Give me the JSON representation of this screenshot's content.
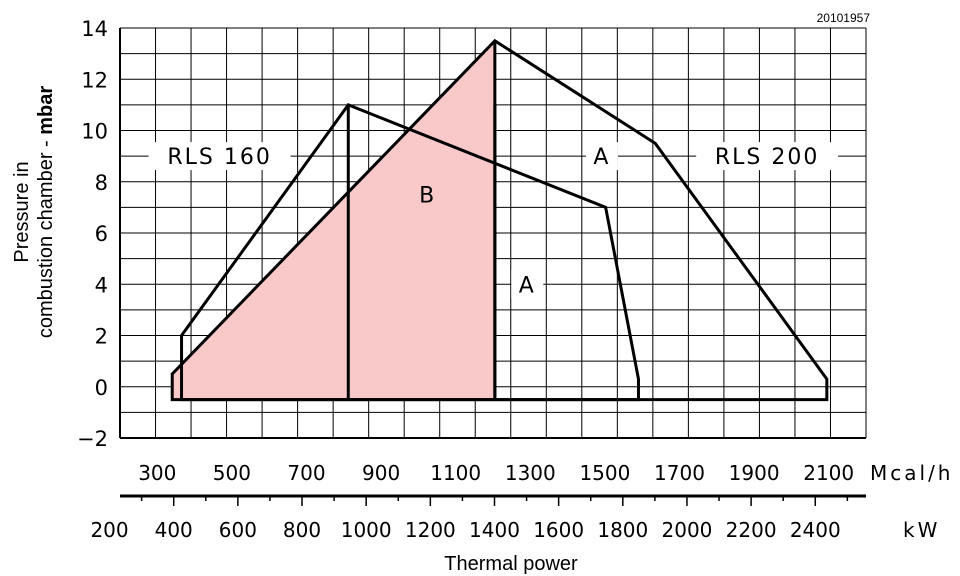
{
  "chart_data": {
    "type": "area",
    "drawing_code": "20101957",
    "ylabel_line1": "Pressure in",
    "ylabel_line2_normal": "combustion chamber - ",
    "ylabel_line2_bold": "mbar",
    "xlabel": "Thermal power",
    "unit_mcal": "Mcal/h",
    "unit_kw": "kW",
    "ylim": [
      -2,
      14
    ],
    "y_ticks": [
      "14",
      "12",
      "10",
      "8",
      "6",
      "4",
      "2",
      "0",
      "−2"
    ],
    "x_range_mcal": [
      200,
      2200
    ],
    "mcal_ticks": [
      "300",
      "500",
      "700",
      "900",
      "1100",
      "1300",
      "1500",
      "1700",
      "1900",
      "2100"
    ],
    "kw_ticks": [
      "200",
      "400",
      "600",
      "800",
      "1000",
      "1200",
      "1400",
      "1600",
      "1800",
      "2000",
      "2200",
      "2400"
    ],
    "grid": true,
    "series": [
      {
        "name": "RLS 160",
        "points": [
          [
            365,
            -0.5
          ],
          [
            365,
            2
          ],
          [
            812,
            11
          ],
          [
            1502,
            7
          ],
          [
            1590,
            0.3
          ],
          [
            1590,
            -0.5
          ]
        ]
      },
      {
        "name": "RLS 200",
        "points": [
          [
            340,
            -0.5
          ],
          [
            340,
            0.5
          ],
          [
            1205,
            13.5
          ],
          [
            1635,
            9.5
          ],
          [
            2095,
            0.3
          ],
          [
            2095,
            -0.5
          ]
        ]
      }
    ],
    "shaded_area": {
      "points": [
        [
          340,
          -0.5
        ],
        [
          340,
          0.5
        ],
        [
          1205,
          13.5
        ],
        [
          1205,
          -0.5
        ]
      ],
      "color": "#f9c9c9"
    },
    "vertical_lines_mcal": [
      812,
      1205
    ],
    "labels": [
      {
        "text": "RLS 160",
        "x": 467,
        "y": 9
      },
      {
        "text": "A",
        "x": 1492,
        "y": 9
      },
      {
        "text": "RLS 200",
        "x": 1935,
        "y": 9
      },
      {
        "text": "B",
        "x": 1025,
        "y": 7.5
      },
      {
        "text": "A",
        "x": 1292,
        "y": 4
      }
    ]
  }
}
